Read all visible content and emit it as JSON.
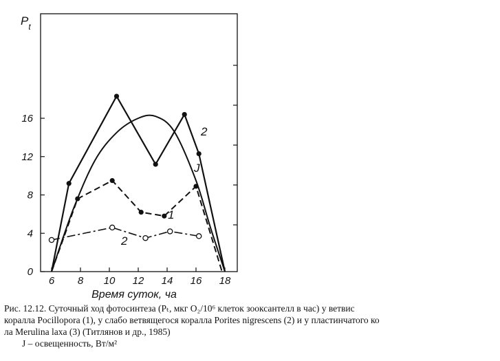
{
  "chart_data": {
    "type": "line",
    "ylabel_main": "P",
    "ylabel_sub": "t",
    "xlabel": "Время суток, ча",
    "xlim": [
      6,
      18
    ],
    "ylim": [
      0,
      20
    ],
    "xticks": [
      6,
      8,
      10,
      12,
      14,
      16,
      18
    ],
    "yticks": [
      0,
      4,
      8,
      12,
      16
    ],
    "series": [
      {
        "name": "2",
        "style": "solid-dots",
        "x": [
          6,
          7.2,
          10.5,
          13.2,
          15.2,
          16.2,
          18
        ],
        "y": [
          0,
          9.2,
          18.3,
          11.2,
          16.4,
          12.3,
          0
        ]
      },
      {
        "name": "1",
        "style": "dashed-dots",
        "x": [
          6,
          7.8,
          10.2,
          12.2,
          13.8,
          16,
          17.8
        ],
        "y": [
          0,
          7.6,
          9.5,
          6.2,
          5.8,
          8.9,
          0
        ]
      },
      {
        "name": "2",
        "style": "dashdot-circles",
        "x": [
          6,
          10.2,
          12.5,
          14.2,
          16.2
        ],
        "y": [
          3.3,
          4.6,
          3.5,
          4.2,
          3.7
        ]
      },
      {
        "name": "J",
        "style": "solid-smooth",
        "x": [
          6,
          7.5,
          9,
          10.5,
          12,
          13.2,
          14.5,
          16,
          17,
          18
        ],
        "y": [
          0,
          6.5,
          11.6,
          14.5,
          16,
          16.2,
          14.6,
          9.5,
          4.6,
          0
        ]
      }
    ],
    "right_axis_ticks": 5,
    "grid": false
  },
  "caption": {
    "line1": "Рис. 12.12. Суточный ход фотосинтеза  (Pₜ, мкг O₂/10⁶  клеток зооксантелл в час)  у ветвис",
    "line2": "коралла Pocillopora (1), у слабо ветвящегося коралла Porites nigrescens (2) и у пластинчатого ко",
    "line3": "ла Merulina laxa (3)  (Титлянов и др., 1985)",
    "line4": "J – освещенность, Вт/м²"
  }
}
